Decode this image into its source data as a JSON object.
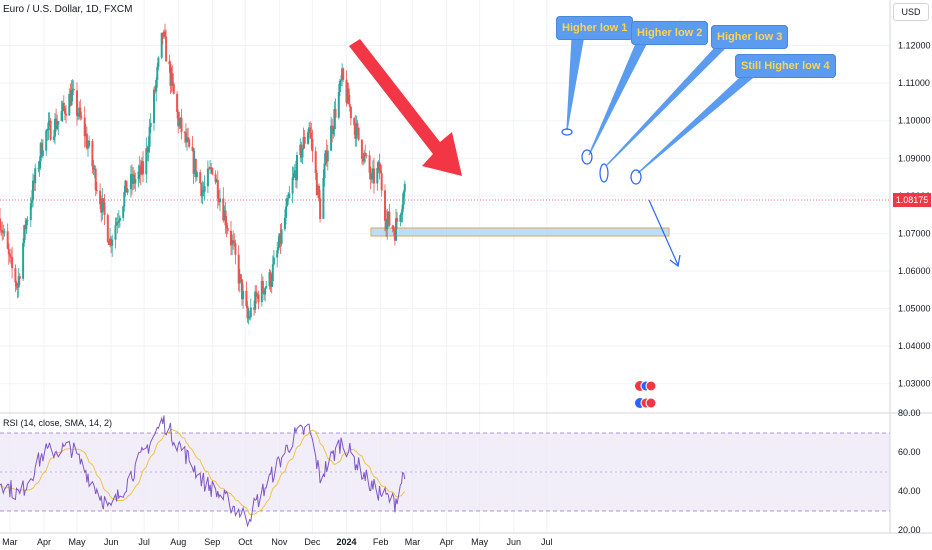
{
  "header": {
    "title": "Euro / U.S. Dollar, 1D, FXCM",
    "currency_button": "USD"
  },
  "price": {
    "current_label": "1.08175",
    "current": 1.08175
  },
  "rsi": {
    "title": "RSI (14, close, SMA, 14, 2)",
    "upper": 70,
    "middle": 50,
    "lower": 30
  },
  "annotations": {
    "callouts": [
      "Higher low 1",
      "Higher low 2",
      "Higher low 3",
      "Still Higher low 4"
    ]
  },
  "colors": {
    "up": "#26a69a",
    "down": "#ef5350",
    "arrow": "#f23645",
    "callout_bg": "#5b9cf0",
    "callout_text": "#ffd34d",
    "rsi_line": "#7e57c2",
    "rsi_ma": "#f5c242",
    "zone": "#bbdefb"
  },
  "chart_data": [
    {
      "type": "candlestick",
      "title": "Euro / U.S. Dollar, 1D, FXCM",
      "x_tick_labels": [
        "Mar",
        "Apr",
        "May",
        "Jun",
        "Jul",
        "Aug",
        "Sep",
        "Oct",
        "Nov",
        "Dec",
        "2024",
        "Feb",
        "Mar",
        "Apr",
        "May",
        "Jun",
        "Jul"
      ],
      "y_tick_labels": [
        "1.12000",
        "1.11000",
        "1.10000",
        "1.09000",
        "1.08000",
        "1.07000",
        "1.06000",
        "1.05000",
        "1.04000",
        "1.03000"
      ],
      "ylim": [
        1.023,
        1.13
      ],
      "support_zone": [
        1.0725,
        1.0745
      ],
      "close_path": {
        "x": [
          "Feb 20",
          "Mar 1",
          "Mar 8",
          "Mar 15",
          "Apr 1",
          "Apr 14",
          "Apr 26",
          "May 8",
          "May 31",
          "Jun 15",
          "Jul 1",
          "Jul 18",
          "Aug 1",
          "Aug 24",
          "Sep 1",
          "Sep 20",
          "Oct 3",
          "Oct 13",
          "Oct 24",
          "Nov 1",
          "Nov 14",
          "Nov 28",
          "Dec 8",
          "Dec 14",
          "Dec 28",
          "Jan 10",
          "Jan 24",
          "Jan 31",
          "Feb 6",
          "Feb 14",
          "Feb 23"
        ],
        "y": [
          1.074,
          1.062,
          1.056,
          1.072,
          1.096,
          1.1,
          1.107,
          1.097,
          1.068,
          1.082,
          1.087,
          1.123,
          1.1,
          1.081,
          1.088,
          1.066,
          1.047,
          1.054,
          1.058,
          1.067,
          1.085,
          1.099,
          1.076,
          1.092,
          1.111,
          1.097,
          1.084,
          1.087,
          1.074,
          1.071,
          1.082
        ]
      }
    },
    {
      "type": "line",
      "title": "RSI (14, close, SMA, 14, 2)",
      "y_tick_labels": [
        "80.00",
        "60.00",
        "40.00",
        "20.00"
      ],
      "ylim": [
        20,
        80
      ],
      "series": [
        {
          "x": [
            "Feb 20",
            "Mar 10",
            "Apr 1",
            "Apr 26",
            "May 31",
            "Jul 18",
            "Aug 24",
            "Oct 3",
            "Nov 14",
            "Nov 28",
            "Dec 8",
            "Dec 28",
            "Jan 24",
            "Feb 14",
            "Feb 23"
          ],
          "values": [
            45,
            38,
            60,
            62,
            30,
            76,
            45,
            26,
            68,
            72,
            47,
            66,
            42,
            34,
            51
          ]
        }
      ]
    }
  ]
}
